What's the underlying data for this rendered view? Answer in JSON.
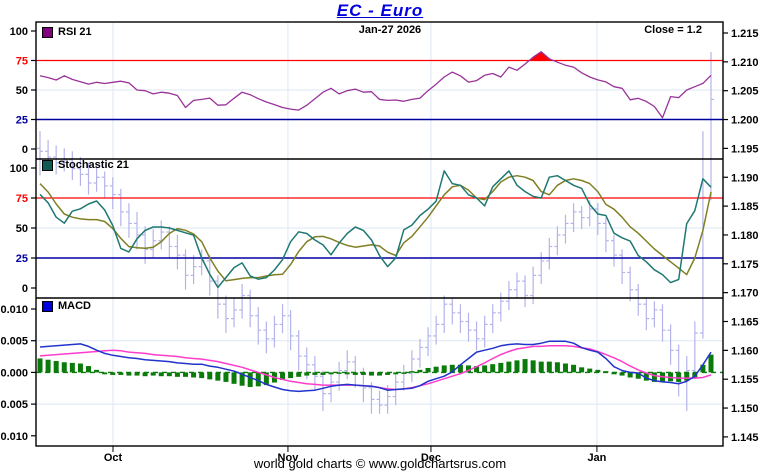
{
  "header": {
    "title": "EC  -  Euro",
    "date_label": "Jan-27  2026",
    "close_label": "Close = 1.2"
  },
  "footer": {
    "credit": "world gold charts © www.goldchartsrus.com"
  },
  "legends": {
    "rsi": {
      "label": "RSI 21",
      "swatch_color": "#800080"
    },
    "stochastic": {
      "label": "Stochastic 21",
      "swatch_color": "#0e5a55"
    },
    "macd": {
      "label": "MACD",
      "swatch_color": "#0000dd"
    }
  },
  "colors": {
    "rsi_line": "#993399",
    "overbought_line": "#ff0000",
    "oversold_line": "#0000a0",
    "stoch_k": "#1f7872",
    "stoch_d": "#7f7f24",
    "macd_line": "#2233cc",
    "signal_line": "#ff3dcc",
    "histogram": "#0a7a0a",
    "price_bar": "#b4b4ea",
    "grid": "#dde7f6",
    "border": "#000000",
    "overbought_fill": "#ff0000",
    "title": "#0000dd"
  },
  "chart_data": {
    "type": "multi-panel-indicator-chart",
    "title": "EC  -  Euro",
    "x_months": [
      {
        "label": "Oct",
        "index": 9.03
      },
      {
        "label": "Nov",
        "index": 30.67
      },
      {
        "label": "Dec",
        "index": 48.36
      },
      {
        "label": "Jan",
        "index": 68.89
      }
    ],
    "panels": [
      {
        "name": "RSI 21",
        "ylim": [
          0,
          100
        ],
        "ticks": [
          {
            "v": 100,
            "label": "100",
            "color": "#000000"
          },
          {
            "v": 75,
            "label": "75",
            "color": "#ff0000"
          },
          {
            "v": 50,
            "label": "50",
            "color": "#000000"
          },
          {
            "v": 25,
            "label": "25",
            "color": "#0000a0"
          },
          {
            "v": 0,
            "label": "0",
            "color": "#000000"
          }
        ],
        "overbought": 75,
        "oversold": 25
      },
      {
        "name": "Stochastic 21",
        "ylim": [
          0,
          100
        ],
        "ticks": [
          {
            "v": 100,
            "label": "100",
            "color": "#000000"
          },
          {
            "v": 75,
            "label": "75",
            "color": "#ff0000"
          },
          {
            "v": 50,
            "label": "50",
            "color": "#000000"
          },
          {
            "v": 25,
            "label": "25",
            "color": "#0000a0"
          },
          {
            "v": 0,
            "label": "0",
            "color": "#000000"
          }
        ],
        "overbought": 75,
        "oversold": 25
      },
      {
        "name": "MACD",
        "ylim": [
          -0.0115,
          0.0115
        ],
        "ticks": [
          {
            "v": 0.01,
            "label": "0.010",
            "color": "#000000"
          },
          {
            "v": 0.005,
            "label": "0.005",
            "color": "#000000"
          },
          {
            "v": 0.0,
            "label": "0.000",
            "color": "#000000"
          },
          {
            "v": -0.005,
            "label": "-0.005",
            "color": "#000000"
          },
          {
            "v": -0.01,
            "label": "-0.010",
            "color": "#000000"
          }
        ]
      }
    ],
    "price_axis": {
      "min": 1.145,
      "max": 1.215,
      "step": 0.005,
      "labels": [
        "1.215",
        "1.210",
        "1.205",
        "1.200",
        "1.195",
        "1.190",
        "1.185",
        "1.180",
        "1.175",
        "1.170",
        "1.165",
        "1.160",
        "1.155",
        "1.150",
        "1.145"
      ]
    },
    "rsi": [
      62,
      60.5,
      58.5,
      62,
      59,
      57,
      55,
      56.5,
      55.5,
      56.5,
      57.5,
      56,
      50,
      49.4,
      46.7,
      48.1,
      47.3,
      45.3,
      35.2,
      41.2,
      42,
      43.1,
      37.1,
      37.5,
      43,
      48.1,
      46,
      42.6,
      39.8,
      37.6,
      35.2,
      33.8,
      33,
      37.1,
      42.6,
      48.1,
      51.4,
      46.7,
      49.4,
      50.8,
      48.1,
      48.6,
      42,
      41.2,
      41.5,
      40.4,
      42,
      43.1,
      49.4,
      54.9,
      61,
      65.2,
      62,
      56.7,
      58,
      62.5,
      64,
      61,
      69.4,
      66.7,
      72,
      77.8,
      82.5,
      76.4,
      73.6,
      71,
      69.4,
      64.6,
      61,
      58.6,
      56.9,
      52.8,
      51.4,
      41.7,
      43,
      40.3,
      36,
      26.4,
      44.4,
      43.6,
      50,
      52.8,
      55.6,
      62.5
    ],
    "stoch_k": [
      78,
      71,
      59,
      54,
      64,
      66,
      70,
      72.5,
      65,
      52,
      33,
      30,
      41,
      48,
      50.8,
      50.8,
      50,
      48,
      46,
      44,
      25,
      11.4,
      0.5,
      8.7,
      17,
      20.9,
      10,
      7.3,
      8.7,
      15,
      23.6,
      38.6,
      46.8,
      45.4,
      40,
      35.9,
      27.7,
      37.3,
      45.4,
      50.8,
      48,
      40,
      27.1,
      17.8,
      25,
      48.4,
      52.4,
      60.4,
      65.7,
      72.3,
      97.6,
      87,
      85.6,
      77.7,
      75,
      68.4,
      84.3,
      91,
      97.6,
      85.6,
      80.3,
      76.3,
      75,
      92.3,
      93.6,
      89.6,
      85.6,
      83,
      69.7,
      61.7,
      60.4,
      45.7,
      41.8,
      39.1,
      27.1,
      21.8,
      15.2,
      11.2,
      4.5,
      7.2,
      53.7,
      64.4,
      91,
      84
    ],
    "stoch_d": [
      87,
      80,
      70,
      61.7,
      59,
      57.6,
      57,
      57,
      55.4,
      49.5,
      41.3,
      34.5,
      33.5,
      33.1,
      34,
      38.6,
      45.4,
      49.5,
      48.1,
      45,
      38.6,
      25,
      14.1,
      6,
      7,
      8,
      8.7,
      8.7,
      10,
      11,
      11.4,
      19.6,
      30.4,
      38.6,
      42.7,
      43,
      41,
      38,
      35.5,
      34,
      35,
      36,
      35,
      29.8,
      27.1,
      37.7,
      43,
      51,
      59,
      68.4,
      77.7,
      84.3,
      85.6,
      81.6,
      75,
      73.7,
      80.3,
      88.3,
      92.3,
      93.6,
      92.3,
      89.6,
      80.3,
      77.7,
      85.6,
      89.6,
      91,
      89.6,
      87,
      80.3,
      69.7,
      65.7,
      59,
      51,
      45.7,
      39.1,
      32.5,
      27.1,
      21.8,
      16.5,
      11.2,
      25,
      48,
      80
    ],
    "macd": [
      0.004,
      0.0041,
      0.0042,
      0.0043,
      0.0044,
      0.0045,
      0.0041,
      0.0035,
      0.003,
      0.0027,
      0.0025,
      0.0023,
      0.0022,
      0.002,
      0.0019,
      0.0018,
      0.0017,
      0.0015,
      0.0014,
      0.0013,
      0.0013,
      0.001,
      0.0008,
      0.0005,
      0.0002,
      -0.0003,
      -0.0008,
      -0.0013,
      -0.0019,
      -0.0023,
      -0.0027,
      -0.0029,
      -0.003,
      -0.0029,
      -0.0028,
      -0.0025,
      -0.0022,
      -0.002,
      -0.0019,
      -0.002,
      -0.0021,
      -0.0022,
      -0.0024,
      -0.0028,
      -0.0027,
      -0.0026,
      -0.0025,
      -0.0021,
      -0.0014,
      -0.001,
      -0.0006,
      0.0001,
      0.0012,
      0.0022,
      0.0032,
      0.0035,
      0.0038,
      0.0042,
      0.0044,
      0.0045,
      0.0044,
      0.0044,
      0.0046,
      0.0049,
      0.0049,
      0.0049,
      0.0046,
      0.0039,
      0.0035,
      0.0032,
      0.0022,
      0.0009,
      0.0003,
      0.0,
      -0.0001,
      -0.0009,
      -0.0013,
      -0.0015,
      -0.0016,
      -0.0018,
      -0.0014,
      -0.0006,
      0.0012,
      0.0032
    ],
    "signal": [
      0.0026,
      0.0027,
      0.0028,
      0.0029,
      0.003,
      0.0031,
      0.0032,
      0.0033,
      0.0034,
      0.0035,
      0.0034,
      0.0032,
      0.0031,
      0.003,
      0.0028,
      0.0027,
      0.0026,
      0.0025,
      0.0023,
      0.0022,
      0.0021,
      0.0019,
      0.0017,
      0.0014,
      0.0011,
      0.0008,
      0.0004,
      0.0,
      -0.0004,
      -0.0008,
      -0.0011,
      -0.0014,
      -0.0016,
      -0.0018,
      -0.0019,
      -0.002,
      -0.002,
      -0.002,
      -0.002,
      -0.002,
      -0.0021,
      -0.0022,
      -0.0024,
      -0.0026,
      -0.0027,
      -0.0026,
      -0.0024,
      -0.0021,
      -0.0018,
      -0.0014,
      -0.001,
      -0.0006,
      -0.0002,
      0.0003,
      0.0009,
      0.0015,
      0.0022,
      0.0028,
      0.0033,
      0.0037,
      0.0039,
      0.0041,
      0.0041,
      0.0042,
      0.0042,
      0.0042,
      0.0041,
      0.0039,
      0.0037,
      0.0033,
      0.0028,
      0.0023,
      0.0017,
      0.001,
      0.0004,
      -0.0001,
      -0.0005,
      -0.0007,
      -0.0008,
      -0.0009,
      -0.0009,
      -0.0009,
      -0.0008,
      -0.0004
    ],
    "histogram": [
      0.0022,
      0.002,
      0.0018,
      0.0016,
      0.0015,
      0.0014,
      0.001,
      0.0004,
      -0.0003,
      -0.0004,
      -0.0004,
      -0.0005,
      -0.0005,
      -0.0006,
      -0.0005,
      -0.0006,
      -0.0006,
      -0.0007,
      -0.0007,
      -0.0008,
      -0.0009,
      -0.0011,
      -0.0013,
      -0.0015,
      -0.0018,
      -0.0021,
      -0.0023,
      -0.0022,
      -0.002,
      -0.0016,
      -0.0012,
      -0.0009,
      -0.0007,
      -0.0005,
      -0.0004,
      -0.0004,
      -0.0003,
      -0.0002,
      -0.0003,
      -0.0004,
      -0.0004,
      -0.0005,
      -0.0005,
      -0.0004,
      -0.0003,
      -0.0002,
      0.0002,
      0.0004,
      0.0007,
      0.0009,
      0.0011,
      0.0012,
      0.0012,
      0.0011,
      0.001,
      0.0011,
      0.0013,
      0.0015,
      0.0017,
      0.0019,
      0.0021,
      0.0019,
      0.0017,
      0.0017,
      0.0016,
      0.0014,
      0.0012,
      0.0008,
      0.0006,
      0.0004,
      0.0002,
      -0.0003,
      -0.0005,
      -0.0008,
      -0.001,
      -0.0013,
      -0.0015,
      -0.0015,
      -0.0014,
      -0.0015,
      -0.0013,
      -0.0009,
      0.0012,
      0.0028
    ],
    "price_bars_ohlc": [
      [
        1.195,
        1.198,
        1.1903,
        1.1945
      ],
      [
        1.1945,
        1.1965,
        1.1915,
        1.1935
      ],
      [
        1.1935,
        1.1955,
        1.1905,
        1.1925
      ],
      [
        1.1925,
        1.195,
        1.191,
        1.193
      ],
      [
        1.193,
        1.1945,
        1.1895,
        1.1915
      ],
      [
        1.1915,
        1.1935,
        1.1885,
        1.1905
      ],
      [
        1.1905,
        1.1925,
        1.187,
        1.189
      ],
      [
        1.189,
        1.192,
        1.1875,
        1.19
      ],
      [
        1.19,
        1.191,
        1.1865,
        1.1885
      ],
      [
        1.1885,
        1.19,
        1.1845,
        1.187
      ],
      [
        1.187,
        1.188,
        1.1815,
        1.184
      ],
      [
        1.184,
        1.1855,
        1.1795,
        1.182
      ],
      [
        1.182,
        1.184,
        1.1775,
        1.18
      ],
      [
        1.18,
        1.1815,
        1.175,
        1.1775
      ],
      [
        1.1775,
        1.181,
        1.176,
        1.179
      ],
      [
        1.179,
        1.1825,
        1.1775,
        1.1805
      ],
      [
        1.1805,
        1.1815,
        1.176,
        1.178
      ],
      [
        1.178,
        1.18,
        1.174,
        1.1765
      ],
      [
        1.1765,
        1.1775,
        1.1705,
        1.173
      ],
      [
        1.173,
        1.1765,
        1.1715,
        1.1745
      ],
      [
        1.1745,
        1.1775,
        1.173,
        1.1755
      ],
      [
        1.1755,
        1.1765,
        1.1695,
        1.172
      ],
      [
        1.172,
        1.173,
        1.1655,
        1.168
      ],
      [
        1.168,
        1.1695,
        1.163,
        1.1655
      ],
      [
        1.1655,
        1.169,
        1.164,
        1.167
      ],
      [
        1.167,
        1.1715,
        1.1655,
        1.1695
      ],
      [
        1.1695,
        1.1705,
        1.164,
        1.166
      ],
      [
        1.166,
        1.1675,
        1.161,
        1.1635
      ],
      [
        1.1635,
        1.165,
        1.1595,
        1.162
      ],
      [
        1.162,
        1.166,
        1.1605,
        1.1645
      ],
      [
        1.1645,
        1.168,
        1.163,
        1.166
      ],
      [
        1.166,
        1.167,
        1.16,
        1.1625
      ],
      [
        1.1625,
        1.1635,
        1.1565,
        1.159
      ],
      [
        1.159,
        1.1605,
        1.155,
        1.1575
      ],
      [
        1.1575,
        1.159,
        1.153,
        1.1555
      ],
      [
        1.1555,
        1.1565,
        1.1495,
        1.1525
      ],
      [
        1.1525,
        1.156,
        1.151,
        1.1545
      ],
      [
        1.1545,
        1.158,
        1.153,
        1.1565
      ],
      [
        1.1565,
        1.16,
        1.155,
        1.158
      ],
      [
        1.158,
        1.159,
        1.1535,
        1.156
      ],
      [
        1.156,
        1.157,
        1.151,
        1.1535
      ],
      [
        1.1535,
        1.1545,
        1.149,
        1.1515
      ],
      [
        1.1515,
        1.153,
        1.149,
        1.1505
      ],
      [
        1.1505,
        1.154,
        1.149,
        1.152
      ],
      [
        1.152,
        1.156,
        1.1505,
        1.1545
      ],
      [
        1.1545,
        1.1575,
        1.153,
        1.156
      ],
      [
        1.156,
        1.16,
        1.1545,
        1.1585
      ],
      [
        1.1585,
        1.162,
        1.157,
        1.1605
      ],
      [
        1.1605,
        1.164,
        1.159,
        1.1625
      ],
      [
        1.1625,
        1.166,
        1.161,
        1.1645
      ],
      [
        1.1645,
        1.1695,
        1.163,
        1.168
      ],
      [
        1.168,
        1.169,
        1.1645,
        1.1665
      ],
      [
        1.1665,
        1.168,
        1.163,
        1.165
      ],
      [
        1.165,
        1.1665,
        1.1615,
        1.1635
      ],
      [
        1.1635,
        1.165,
        1.16,
        1.162
      ],
      [
        1.162,
        1.166,
        1.1605,
        1.1645
      ],
      [
        1.1645,
        1.168,
        1.163,
        1.1665
      ],
      [
        1.1665,
        1.17,
        1.165,
        1.1685
      ],
      [
        1.1685,
        1.172,
        1.167,
        1.1705
      ],
      [
        1.1705,
        1.1735,
        1.169,
        1.172
      ],
      [
        1.172,
        1.173,
        1.1675,
        1.1695
      ],
      [
        1.1695,
        1.1745,
        1.168,
        1.173
      ],
      [
        1.173,
        1.177,
        1.1715,
        1.1755
      ],
      [
        1.1755,
        1.1795,
        1.174,
        1.178
      ],
      [
        1.178,
        1.1815,
        1.1765,
        1.18
      ],
      [
        1.18,
        1.1835,
        1.1785,
        1.182
      ],
      [
        1.182,
        1.1855,
        1.1805,
        1.184
      ],
      [
        1.184,
        1.185,
        1.181,
        1.183
      ],
      [
        1.183,
        1.186,
        1.1815,
        1.1845
      ],
      [
        1.1845,
        1.1855,
        1.18,
        1.182
      ],
      [
        1.182,
        1.183,
        1.177,
        1.179
      ],
      [
        1.179,
        1.18,
        1.1745,
        1.1765
      ],
      [
        1.1765,
        1.1775,
        1.1715,
        1.1735
      ],
      [
        1.1735,
        1.1745,
        1.1685,
        1.1705
      ],
      [
        1.1705,
        1.1715,
        1.166,
        1.168
      ],
      [
        1.168,
        1.169,
        1.1635,
        1.1655
      ],
      [
        1.1655,
        1.1685,
        1.164,
        1.167
      ],
      [
        1.167,
        1.168,
        1.1615,
        1.1635
      ],
      [
        1.1635,
        1.1645,
        1.1575,
        1.16
      ],
      [
        1.16,
        1.161,
        1.152,
        1.1545
      ],
      [
        1.1545,
        1.159,
        1.1495,
        1.1565
      ],
      [
        1.1565,
        1.165,
        1.155,
        1.163
      ],
      [
        1.163,
        1.198,
        1.162,
        1.1865
      ],
      [
        1.1865,
        1.2117,
        1.186,
        1.2035
      ]
    ]
  }
}
